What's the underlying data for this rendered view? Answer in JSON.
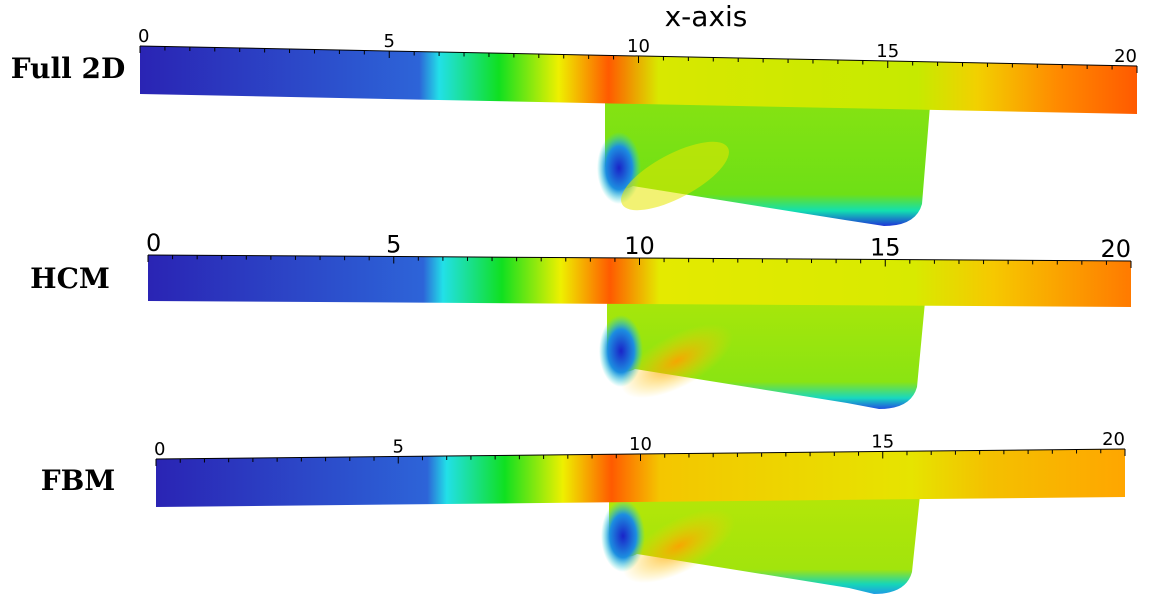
{
  "figure": {
    "axis_title": "x-axis",
    "rows": [
      {
        "label": "Full 2D",
        "tick_labels": [
          "0",
          "5",
          "10",
          "15",
          "20"
        ]
      },
      {
        "label": "HCM",
        "tick_labels": [
          "0",
          "5",
          "10",
          "15",
          "20"
        ]
      },
      {
        "label": "FBM",
        "tick_labels": [
          "0",
          "5",
          "10",
          "15",
          "20"
        ]
      }
    ]
  },
  "colors": {
    "deep_blue": "#2a24b4",
    "blue": "#2d64d8",
    "cyan": "#22e0e8",
    "green": "#10e020",
    "yellow_green": "#b8e800",
    "yellow": "#eef000",
    "orange": "#ff9800",
    "red_orange": "#ff5a00",
    "light_green": "#86e212"
  }
}
